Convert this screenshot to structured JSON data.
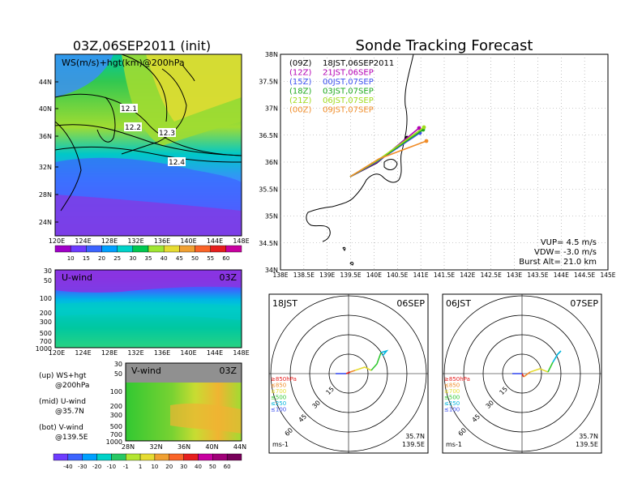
{
  "titles": {
    "left": "03Z,06SEP2011 (init)",
    "right": "Sonde Tracking Forecast"
  },
  "map_panel": {
    "label": "WS(m/s)+hgt(km)@200hPa",
    "lat_labels": [
      "44N",
      "40N",
      "36N",
      "32N",
      "28N",
      "24N"
    ],
    "lon_labels": [
      "120E",
      "124E",
      "128E",
      "132E",
      "136E",
      "140E",
      "144E",
      "148E"
    ],
    "contour_labels": [
      "12.1",
      "12.2",
      "12.3",
      "12.4"
    ],
    "colorbar": [
      "10",
      "15",
      "20",
      "25",
      "30",
      "35",
      "40",
      "45",
      "50",
      "55",
      "60"
    ],
    "colorbar_colors": [
      "#a000c8",
      "#6e3cff",
      "#3c64ff",
      "#00a0ff",
      "#00d2c8",
      "#00c850",
      "#a0e632",
      "#e6dc32",
      "#f0a032",
      "#fa6428",
      "#e61e1e",
      "#c800a0"
    ]
  },
  "u_panel": {
    "label": "U-wind",
    "time": "03Z",
    "p_labels": [
      "30",
      "50",
      "100",
      "200",
      "300",
      "500",
      "700",
      "1000"
    ],
    "lon_labels": [
      "120E",
      "124E",
      "128E",
      "132E",
      "136E",
      "140E",
      "144E",
      "148E"
    ]
  },
  "v_panel": {
    "label": "V-wind",
    "time": "03Z",
    "p_labels": [
      "30",
      "50",
      "100",
      "200",
      "300",
      "500",
      "700",
      "1000"
    ],
    "lat_labels": [
      "28N",
      "32N",
      "36N",
      "40N",
      "44N"
    ]
  },
  "legend_notes": [
    {
      "a": "(up) WS+hgt",
      "b": "@200hPa"
    },
    {
      "a": "(mid) U-wind",
      "b": "@35.7N"
    },
    {
      "a": "(bot) V-wind",
      "b": "@139.5E"
    }
  ],
  "bottom_colorbar": {
    "labels": [
      "-40",
      "-30",
      "-20",
      "-10",
      "-1",
      "1",
      "10",
      "20",
      "30",
      "40",
      "50",
      "60"
    ]
  },
  "track_panel": {
    "lat_labels": [
      "38N",
      "37.5N",
      "37N",
      "36.5N",
      "36N",
      "35.5N",
      "35N",
      "34.5N",
      "34N"
    ],
    "lon_labels": [
      "138E",
      "138.5E",
      "139E",
      "139.5E",
      "140E",
      "140.5E",
      "141E",
      "141.5E",
      "142E",
      "142.5E",
      "143E",
      "143.5E",
      "144E",
      "144.5E",
      "145E"
    ],
    "legend": [
      {
        "run": "(09Z)",
        "time": "18JST,06SEP2011",
        "color": "#000000"
      },
      {
        "run": "(12Z)",
        "time": "21JST,06SEP",
        "color": "#b400b4"
      },
      {
        "run": "(15Z)",
        "time": "00JST,07SEP",
        "color": "#3c50f0"
      },
      {
        "run": "(18Z)",
        "time": "03JST,07SEP",
        "color": "#1eaa1e"
      },
      {
        "run": "(21Z)",
        "time": "06JST,07SEP",
        "color": "#a0dc1e"
      },
      {
        "run": "(00Z)",
        "time": "09JST,07SEP",
        "color": "#f08c28"
      }
    ],
    "params": {
      "vup": "VUP= 4.5 m/s",
      "vdw": "VDW= -3.0 m/s",
      "burst": "Burst Alt= 21.0 km"
    }
  },
  "hodo_left": {
    "time": "18JST",
    "date": "06SEP",
    "ring_labels": [
      "15",
      "30",
      "45",
      "60"
    ],
    "levels": [
      "≥850hPa",
      "≤850",
      "≤700",
      "≤500",
      "≤250",
      "≤100"
    ],
    "level_colors": [
      "#e61e1e",
      "#f08c28",
      "#e6dc32",
      "#32c832",
      "#00b4dc",
      "#3c50f0"
    ],
    "unit": "ms-1",
    "lat": "35.7N",
    "lon": "139.5E"
  },
  "hodo_right": {
    "time": "06JST",
    "date": "07SEP",
    "ring_labels": [
      "15",
      "30",
      "45",
      "60"
    ],
    "levels": [
      "≥850hPa",
      "≤850",
      "≤700",
      "≤500",
      "≤250",
      "≤100"
    ],
    "level_colors": [
      "#e61e1e",
      "#f08c28",
      "#e6dc32",
      "#32c832",
      "#00b4dc",
      "#3c50f0"
    ],
    "unit": "ms-1",
    "lat": "35.7N",
    "lon": "139.5E"
  }
}
